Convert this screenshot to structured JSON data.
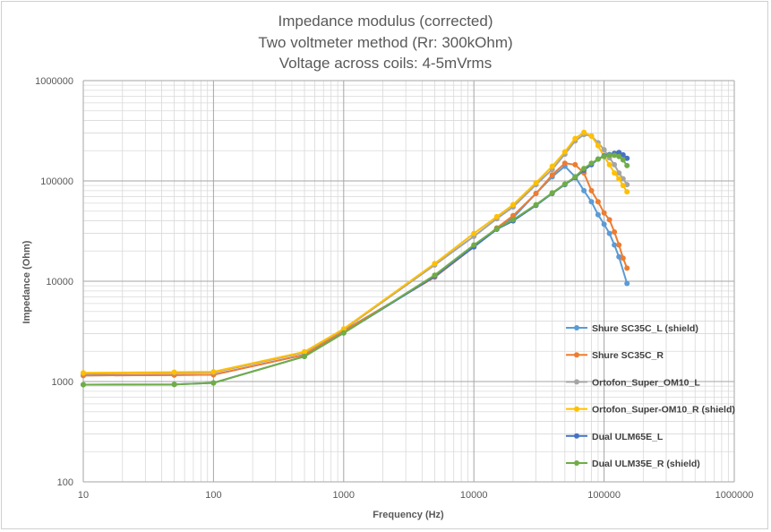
{
  "chart_data": {
    "type": "line",
    "title_lines": [
      "Impedance modulus (corrected)",
      "Two voltmeter method (Rr: 300kOhm)",
      "Voltage across coils: 4-5mVrms"
    ],
    "xlabel": "Frequency (Hz)",
    "ylabel": "Impedance (Ohm)",
    "x_scale": "log",
    "y_scale": "log",
    "xlim": [
      10,
      1000000
    ],
    "ylim": [
      100,
      1000000
    ],
    "x_ticks": [
      "10",
      "100",
      "1000",
      "10000",
      "100000",
      "1000000"
    ],
    "y_ticks": [
      "100",
      "1000",
      "10000",
      "100000",
      "1000000"
    ],
    "grid": true,
    "minor_grid": true,
    "legend_position": "right",
    "series": [
      {
        "name": "Shure SC35C_L (shield)",
        "color": "#5B9BD5",
        "points": [
          [
            10,
            1150
          ],
          [
            50,
            1160
          ],
          [
            100,
            1170
          ],
          [
            500,
            1850
          ],
          [
            1000,
            3200
          ],
          [
            5000,
            11000
          ],
          [
            10000,
            22000
          ],
          [
            15000,
            33000
          ],
          [
            20000,
            43000
          ],
          [
            30000,
            75000
          ],
          [
            40000,
            110000
          ],
          [
            50000,
            140000
          ],
          [
            60000,
            110000
          ],
          [
            70000,
            80000
          ],
          [
            80000,
            62000
          ],
          [
            90000,
            46000
          ],
          [
            100000,
            37000
          ],
          [
            110000,
            30000
          ],
          [
            120000,
            23000
          ],
          [
            130000,
            17500
          ],
          [
            150000,
            9500
          ]
        ]
      },
      {
        "name": "Shure SC35C_R",
        "color": "#ED7D31",
        "points": [
          [
            10,
            1150
          ],
          [
            50,
            1160
          ],
          [
            100,
            1170
          ],
          [
            500,
            1850
          ],
          [
            1000,
            3200
          ],
          [
            5000,
            11000
          ],
          [
            10000,
            22000
          ],
          [
            15000,
            34000
          ],
          [
            20000,
            45000
          ],
          [
            30000,
            75000
          ],
          [
            40000,
            115000
          ],
          [
            50000,
            150000
          ],
          [
            60000,
            145000
          ],
          [
            70000,
            120000
          ],
          [
            80000,
            80000
          ],
          [
            90000,
            62000
          ],
          [
            100000,
            48000
          ],
          [
            110000,
            41000
          ],
          [
            120000,
            31000
          ],
          [
            130000,
            23000
          ],
          [
            140000,
            17000
          ],
          [
            150000,
            13500
          ]
        ]
      },
      {
        "name": "Ortofon_Super_OM10_L",
        "color": "#A5A5A5",
        "points": [
          [
            10,
            1200
          ],
          [
            50,
            1220
          ],
          [
            100,
            1230
          ],
          [
            500,
            1950
          ],
          [
            1000,
            3300
          ],
          [
            5000,
            14500
          ],
          [
            10000,
            28000
          ],
          [
            15000,
            42000
          ],
          [
            20000,
            55000
          ],
          [
            30000,
            92000
          ],
          [
            40000,
            130000
          ],
          [
            50000,
            185000
          ],
          [
            60000,
            250000
          ],
          [
            70000,
            290000
          ],
          [
            80000,
            280000
          ],
          [
            90000,
            240000
          ],
          [
            100000,
            205000
          ],
          [
            110000,
            170000
          ],
          [
            120000,
            145000
          ],
          [
            130000,
            120000
          ],
          [
            140000,
            105000
          ],
          [
            150000,
            92000
          ]
        ]
      },
      {
        "name": "Ortofon_Super-OM10_R (shield)",
        "color": "#FFC000",
        "points": [
          [
            10,
            1220
          ],
          [
            50,
            1240
          ],
          [
            100,
            1250
          ],
          [
            500,
            1980
          ],
          [
            1000,
            3350
          ],
          [
            5000,
            15000
          ],
          [
            10000,
            30000
          ],
          [
            15000,
            44000
          ],
          [
            20000,
            58000
          ],
          [
            30000,
            96000
          ],
          [
            40000,
            140000
          ],
          [
            50000,
            195000
          ],
          [
            60000,
            265000
          ],
          [
            70000,
            305000
          ],
          [
            80000,
            280000
          ],
          [
            90000,
            225000
          ],
          [
            100000,
            175000
          ],
          [
            110000,
            145000
          ],
          [
            120000,
            120000
          ],
          [
            130000,
            105000
          ],
          [
            140000,
            90000
          ],
          [
            150000,
            78000
          ]
        ]
      },
      {
        "name": "Dual ULM65E_L",
        "color": "#4472C4",
        "points": [
          [
            10,
            930
          ],
          [
            50,
            935
          ],
          [
            100,
            970
          ],
          [
            500,
            1780
          ],
          [
            1000,
            3050
          ],
          [
            5000,
            11200
          ],
          [
            10000,
            22000
          ],
          [
            15000,
            33000
          ],
          [
            20000,
            40000
          ],
          [
            30000,
            57000
          ],
          [
            40000,
            75000
          ],
          [
            50000,
            92000
          ],
          [
            60000,
            108000
          ],
          [
            70000,
            128000
          ],
          [
            80000,
            145000
          ],
          [
            90000,
            165000
          ],
          [
            100000,
            178000
          ],
          [
            110000,
            183000
          ],
          [
            120000,
            188000
          ],
          [
            130000,
            192000
          ],
          [
            140000,
            182000
          ],
          [
            150000,
            168000
          ]
        ]
      },
      {
        "name": "Dual ULM35E_R (shield)",
        "color": "#70AD47",
        "points": [
          [
            10,
            930
          ],
          [
            50,
            935
          ],
          [
            100,
            970
          ],
          [
            500,
            1780
          ],
          [
            1000,
            3050
          ],
          [
            5000,
            11500
          ],
          [
            10000,
            23000
          ],
          [
            15000,
            33500
          ],
          [
            20000,
            41000
          ],
          [
            30000,
            58000
          ],
          [
            40000,
            76000
          ],
          [
            50000,
            93000
          ],
          [
            60000,
            110000
          ],
          [
            70000,
            133000
          ],
          [
            80000,
            150000
          ],
          [
            90000,
            165000
          ],
          [
            100000,
            175000
          ],
          [
            110000,
            180000
          ],
          [
            120000,
            180000
          ],
          [
            130000,
            175000
          ],
          [
            140000,
            162000
          ],
          [
            150000,
            142000
          ]
        ]
      }
    ]
  }
}
